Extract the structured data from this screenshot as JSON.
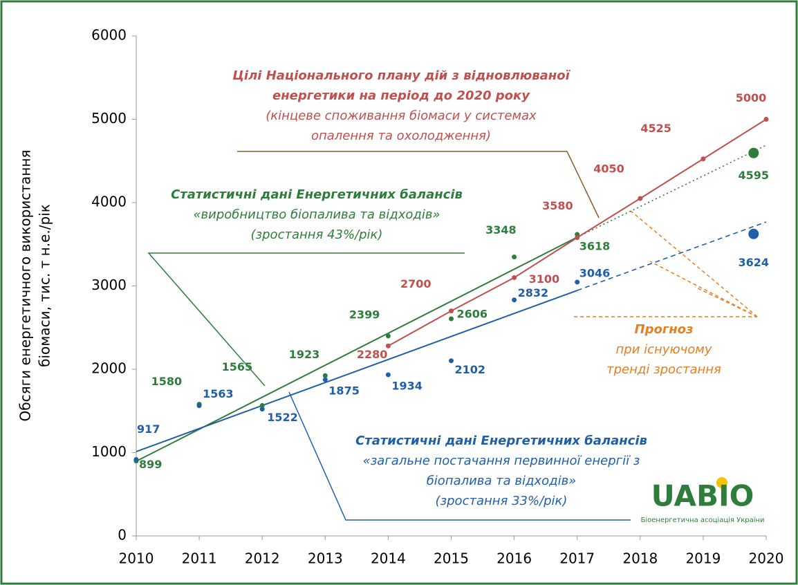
{
  "chart_data": {
    "type": "scatter",
    "y_label": [
      "Обсяги енергетичного використання",
      "біомаси, тис. т н.е./рік"
    ],
    "xlim": [
      2010,
      2020
    ],
    "xticks": [
      2010,
      2011,
      2012,
      2013,
      2014,
      2015,
      2016,
      2017,
      2018,
      2019,
      2020
    ],
    "ylim": [
      0,
      6000
    ],
    "yticks": [
      0,
      1000,
      2000,
      3000,
      4000,
      5000,
      6000
    ],
    "series": [
      {
        "color": "#2e7d3a",
        "x": [
          2010,
          2011,
          2012,
          2013,
          2014,
          2015,
          2016,
          2017
        ],
        "values": [
          899,
          1580,
          1565,
          1923,
          2399,
          2606,
          3348,
          3618
        ],
        "forecast_x": 2019.8,
        "forecast_value": 4595
      },
      {
        "color": "#1f5fa8",
        "x": [
          2010,
          2011,
          2012,
          2013,
          2014,
          2015,
          2016,
          2017
        ],
        "values": [
          917,
          1563,
          1522,
          1875,
          1934,
          2102,
          2832,
          3046
        ],
        "forecast_x": 2019.8,
        "forecast_value": 3624
      },
      {
        "color": "#c0504d",
        "x": [
          2014,
          2015,
          2016,
          2017,
          2018,
          2019,
          2020
        ],
        "values": [
          2280,
          2700,
          3100,
          3580,
          4050,
          4525,
          5000
        ],
        "line": true
      }
    ],
    "trend_lines": [
      {
        "color": "#2e7d3a",
        "style": "solid",
        "x": [
          2010,
          2017
        ],
        "values": [
          896,
          3585
        ]
      },
      {
        "color": "#2e7d3a",
        "style": "dotted",
        "x": [
          2017,
          2020
        ],
        "values": [
          3585,
          4689
        ]
      },
      {
        "color": "#1f5fa8",
        "style": "solid",
        "x": [
          2010,
          2017
        ],
        "values": [
          1012,
          2946
        ]
      },
      {
        "color": "#1f5fa8",
        "style": "dashed",
        "x": [
          2017,
          2020
        ],
        "values": [
          2946,
          3768
        ]
      }
    ],
    "annotations": {
      "plan": [
        "Цілі Національного плану дій з відновлюваної",
        "енергетики на період до 2020 року",
        "(кінцеве споживання біомаси у системах",
        "опалення та охолодження)"
      ],
      "production": [
        "Статистичні дані Енергетичних балансів",
        "«виробництво біопалива та відходів»",
        "(зростання 43%/рік)"
      ],
      "supply": [
        "Статистичні дані Енергетичних балансів",
        "«загальне постачання первинної енергії з",
        "біопалива та відходів»",
        "(зростання 33%/рік)"
      ],
      "forecast": [
        "Прогноз",
        "при існуючому",
        "тренді зростання"
      ]
    },
    "logo": {
      "name": "UABIO",
      "caption": "Біоенергетична асоціація України"
    }
  }
}
